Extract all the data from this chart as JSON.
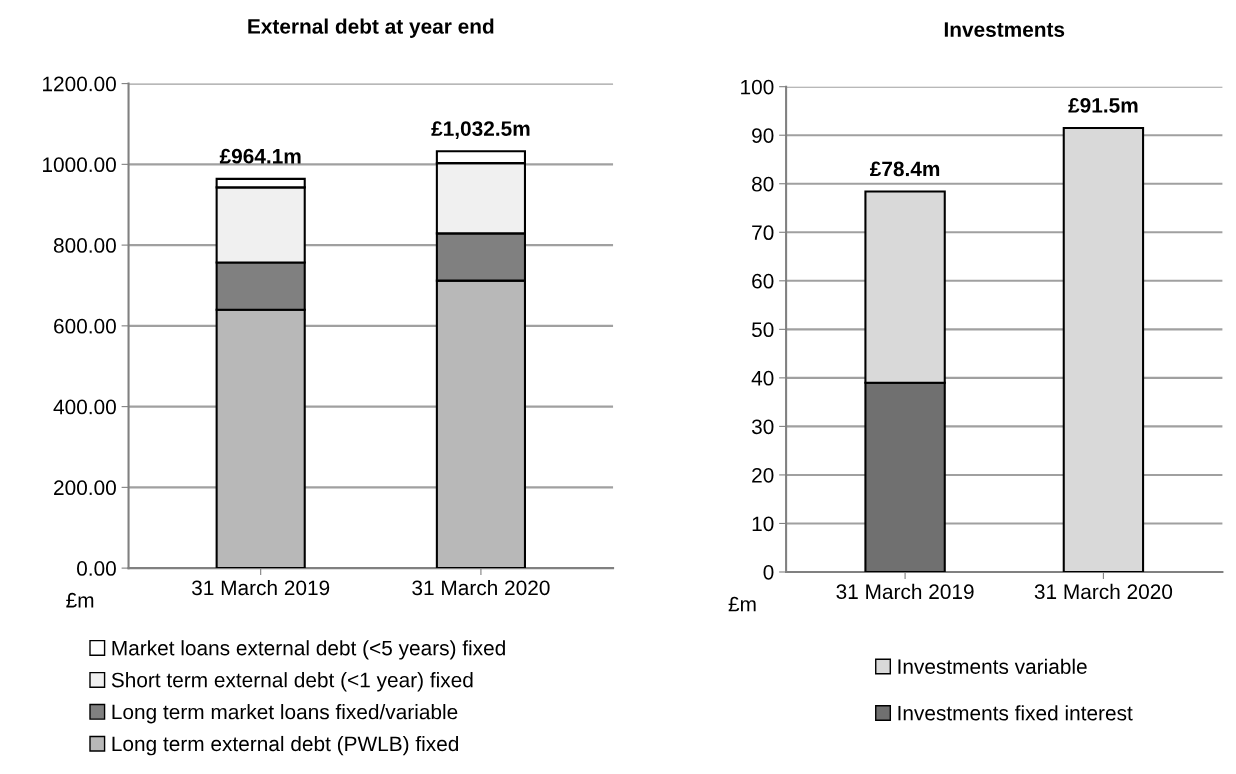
{
  "chart_data": [
    {
      "type": "bar",
      "title": "External debt at year end",
      "ylabel": "£m",
      "categories": [
        "31 March 2019",
        "31 March 2020"
      ],
      "stacked": true,
      "series": [
        {
          "name": "Long term external debt (PWLB) fixed",
          "color": "#b8b8b8",
          "values": [
            640,
            712
          ]
        },
        {
          "name": "Long term market loans fixed/variable",
          "color": "#808080",
          "values": [
            117,
            117
          ]
        },
        {
          "name": "Short term external debt (<1 year) fixed",
          "color": "#f0f0f0",
          "values": [
            186,
            174
          ]
        },
        {
          "name": "Market loans external debt (<5 years) fixed",
          "color": "#ffffff",
          "values": [
            21.1,
            29.5
          ]
        }
      ],
      "totals": [
        "£964.1m",
        "£1,032.5m"
      ],
      "ylim": [
        0,
        1200
      ],
      "yticks": [
        {
          "value": 0,
          "label": "0.00"
        },
        {
          "value": 200,
          "label": "200.00"
        },
        {
          "value": 400,
          "label": "400.00"
        },
        {
          "value": 600,
          "label": "600.00"
        },
        {
          "value": 800,
          "label": "800.00"
        },
        {
          "value": 1000,
          "label": "1000.00"
        },
        {
          "value": 1200,
          "label": "1200.00"
        }
      ],
      "grid": "y",
      "legend": "bottom"
    },
    {
      "type": "bar",
      "title": "Investments",
      "ylabel": "£m",
      "categories": [
        "31 March 2019",
        "31 March 2020"
      ],
      "stacked": true,
      "series": [
        {
          "name": "Investments fixed interest",
          "color": "#707070",
          "values": [
            39.0,
            0
          ]
        },
        {
          "name": "Investments variable",
          "color": "#d9d9d9",
          "values": [
            39.4,
            91.5
          ]
        }
      ],
      "totals": [
        "£78.4m",
        "£91.5m"
      ],
      "ylim": [
        0,
        100
      ],
      "yticks": [
        0,
        10,
        20,
        30,
        40,
        50,
        60,
        70,
        80,
        90,
        100
      ],
      "grid": "y",
      "legend": "bottom"
    }
  ]
}
